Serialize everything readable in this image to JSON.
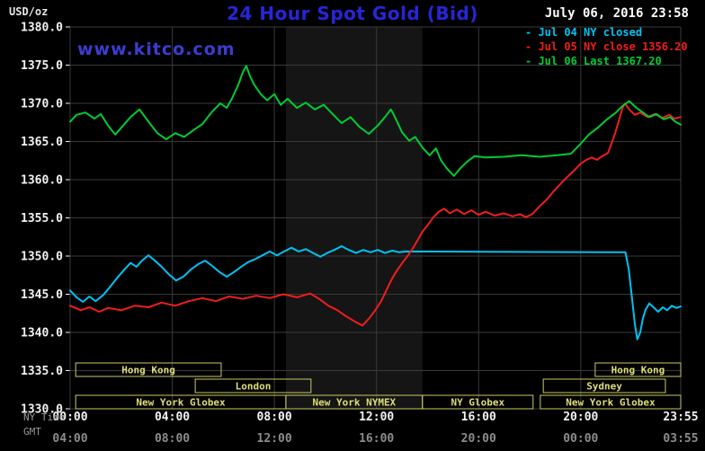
{
  "header": {
    "units_label": "USD/oz",
    "title": "24 Hour Spot Gold (Bid)",
    "datetime": "July 06, 2016 23:58"
  },
  "watermark": "www.kitco.com",
  "legend_marker": "-",
  "axis_row_labels": {
    "ny": "NY Time",
    "gmt": "GMT"
  },
  "colors": {
    "background": "#000000",
    "grid": "#3a3a3a",
    "axis_text": "#f2f2f2",
    "gmt_text": "#8c8c8c",
    "session": "#c9c966",
    "session_text": "#dede7a",
    "title": "#2626d8",
    "watermark": "#3c3cd0",
    "datetime": "#ffffff",
    "units": "#e6e6e6",
    "row_label": "#999999"
  },
  "chart_data": {
    "type": "line",
    "title": "24 Hour Spot Gold (Bid)",
    "y_axis": {
      "unit": "USD/oz",
      "min": 1330,
      "max": 1380,
      "step": 5,
      "ticks": [
        "1380.0",
        "1375.0",
        "1370.0",
        "1365.0",
        "1360.0",
        "1355.0",
        "1350.0",
        "1345.0",
        "1340.0",
        "1335.0",
        "1330.0"
      ]
    },
    "x_axis": {
      "max_minutes": 1435,
      "tick_minutes": [
        0,
        240,
        480,
        720,
        960,
        1200,
        1435
      ],
      "ny_labels": [
        "00:00",
        "04:00",
        "08:00",
        "12:00",
        "16:00",
        "20:00",
        "23:55"
      ],
      "gmt_labels": [
        "04:00",
        "08:00",
        "12:00",
        "16:00",
        "20:00",
        "00:00",
        "03:55"
      ]
    },
    "bands": [
      {
        "start": 507,
        "end": 828,
        "color": "#151515"
      }
    ],
    "sessions": [
      {
        "label": "Hong Kong",
        "row": 0,
        "start": 13,
        "end": 355
      },
      {
        "label": "Hong Kong",
        "row": 0,
        "start": 1234,
        "end": 1435
      },
      {
        "label": "London",
        "row": 1,
        "start": 294,
        "end": 566
      },
      {
        "label": "Sydney",
        "row": 1,
        "start": 1112,
        "end": 1399
      },
      {
        "label": "New York Globex",
        "row": 2,
        "start": 13,
        "end": 507
      },
      {
        "label": "New York NYMEX",
        "row": 2,
        "start": 507,
        "end": 828
      },
      {
        "label": "NY Globex",
        "row": 2,
        "start": 828,
        "end": 1088
      },
      {
        "label": "New York Globex",
        "row": 2,
        "start": 1105,
        "end": 1435
      }
    ],
    "series": [
      {
        "id": "jul04",
        "name": "Jul 04 NY closed",
        "status": "NY closed",
        "color": "#00c3f2",
        "points": [
          [
            0,
            1345.5
          ],
          [
            15,
            1344.6
          ],
          [
            30,
            1344.0
          ],
          [
            45,
            1344.7
          ],
          [
            60,
            1344.1
          ],
          [
            78,
            1344.9
          ],
          [
            93,
            1345.9
          ],
          [
            110,
            1347.1
          ],
          [
            127,
            1348.2
          ],
          [
            142,
            1349.1
          ],
          [
            156,
            1348.6
          ],
          [
            169,
            1349.4
          ],
          [
            184,
            1350.1
          ],
          [
            199,
            1349.4
          ],
          [
            215,
            1348.6
          ],
          [
            232,
            1347.6
          ],
          [
            249,
            1346.8
          ],
          [
            266,
            1347.3
          ],
          [
            283,
            1348.2
          ],
          [
            300,
            1348.9
          ],
          [
            317,
            1349.4
          ],
          [
            334,
            1348.7
          ],
          [
            351,
            1347.9
          ],
          [
            368,
            1347.3
          ],
          [
            385,
            1347.9
          ],
          [
            402,
            1348.6
          ],
          [
            418,
            1349.2
          ],
          [
            435,
            1349.6
          ],
          [
            452,
            1350.1
          ],
          [
            469,
            1350.6
          ],
          [
            486,
            1350.1
          ],
          [
            503,
            1350.6
          ],
          [
            520,
            1351.1
          ],
          [
            537,
            1350.6
          ],
          [
            554,
            1350.9
          ],
          [
            571,
            1350.4
          ],
          [
            588,
            1349.9
          ],
          [
            604,
            1350.4
          ],
          [
            621,
            1350.8
          ],
          [
            638,
            1351.3
          ],
          [
            655,
            1350.8
          ],
          [
            672,
            1350.4
          ],
          [
            689,
            1350.8
          ],
          [
            706,
            1350.5
          ],
          [
            723,
            1350.8
          ],
          [
            740,
            1350.4
          ],
          [
            757,
            1350.7
          ],
          [
            774,
            1350.5
          ],
          [
            790,
            1350.6
          ],
          [
            1305,
            1350.5
          ],
          [
            1313,
            1348.2
          ],
          [
            1320,
            1344.7
          ],
          [
            1327,
            1341.2
          ],
          [
            1333,
            1339.1
          ],
          [
            1340,
            1340.0
          ],
          [
            1346,
            1341.8
          ],
          [
            1352,
            1342.9
          ],
          [
            1361,
            1343.8
          ],
          [
            1371,
            1343.3
          ],
          [
            1382,
            1342.7
          ],
          [
            1393,
            1343.3
          ],
          [
            1403,
            1342.9
          ],
          [
            1414,
            1343.5
          ],
          [
            1425,
            1343.2
          ],
          [
            1435,
            1343.4
          ]
        ]
      },
      {
        "id": "jul05",
        "name": "Jul 05 NY close 1356.20",
        "close": 1356.2,
        "color": "#f21d1d",
        "points": [
          [
            0,
            1343.5
          ],
          [
            25,
            1342.9
          ],
          [
            46,
            1343.3
          ],
          [
            68,
            1342.7
          ],
          [
            89,
            1343.2
          ],
          [
            120,
            1342.9
          ],
          [
            152,
            1343.5
          ],
          [
            184,
            1343.3
          ],
          [
            215,
            1343.9
          ],
          [
            247,
            1343.5
          ],
          [
            279,
            1344.1
          ],
          [
            311,
            1344.5
          ],
          [
            342,
            1344.1
          ],
          [
            374,
            1344.7
          ],
          [
            406,
            1344.4
          ],
          [
            437,
            1344.8
          ],
          [
            469,
            1344.5
          ],
          [
            501,
            1345.0
          ],
          [
            533,
            1344.6
          ],
          [
            564,
            1345.1
          ],
          [
            585,
            1344.4
          ],
          [
            607,
            1343.5
          ],
          [
            628,
            1342.9
          ],
          [
            649,
            1342.1
          ],
          [
            670,
            1341.4
          ],
          [
            687,
            1340.9
          ],
          [
            702,
            1341.8
          ],
          [
            717,
            1342.9
          ],
          [
            731,
            1344.1
          ],
          [
            744,
            1345.6
          ],
          [
            757,
            1347.1
          ],
          [
            769,
            1348.2
          ],
          [
            782,
            1349.2
          ],
          [
            793,
            1350.0
          ],
          [
            803,
            1350.8
          ],
          [
            816,
            1352.0
          ],
          [
            828,
            1353.2
          ],
          [
            841,
            1354.1
          ],
          [
            854,
            1355.1
          ],
          [
            866,
            1355.8
          ],
          [
            879,
            1356.2
          ],
          [
            892,
            1355.6
          ],
          [
            909,
            1356.1
          ],
          [
            926,
            1355.5
          ],
          [
            943,
            1356.0
          ],
          [
            960,
            1355.4
          ],
          [
            976,
            1355.8
          ],
          [
            998,
            1355.3
          ],
          [
            1019,
            1355.6
          ],
          [
            1040,
            1355.2
          ],
          [
            1057,
            1355.5
          ],
          [
            1071,
            1355.1
          ],
          [
            1086,
            1355.5
          ],
          [
            1103,
            1356.5
          ],
          [
            1120,
            1357.4
          ],
          [
            1135,
            1358.4
          ],
          [
            1150,
            1359.3
          ],
          [
            1162,
            1360.0
          ],
          [
            1175,
            1360.7
          ],
          [
            1188,
            1361.4
          ],
          [
            1200,
            1362.1
          ],
          [
            1213,
            1362.6
          ],
          [
            1226,
            1362.9
          ],
          [
            1238,
            1362.6
          ],
          [
            1251,
            1363.1
          ],
          [
            1264,
            1363.5
          ],
          [
            1272,
            1364.7
          ],
          [
            1281,
            1366.1
          ],
          [
            1289,
            1367.6
          ],
          [
            1297,
            1369.2
          ],
          [
            1304,
            1370.0
          ],
          [
            1314,
            1369.2
          ],
          [
            1327,
            1368.5
          ],
          [
            1340,
            1368.8
          ],
          [
            1357,
            1368.2
          ],
          [
            1374,
            1368.6
          ],
          [
            1391,
            1368.1
          ],
          [
            1408,
            1368.5
          ],
          [
            1420,
            1368.0
          ],
          [
            1435,
            1368.2
          ]
        ]
      },
      {
        "id": "jul06",
        "name": "Jul 06 Last 1367.20",
        "last": 1367.2,
        "color": "#00cc33",
        "points": [
          [
            0,
            1367.6
          ],
          [
            15,
            1368.5
          ],
          [
            36,
            1368.8
          ],
          [
            57,
            1368.0
          ],
          [
            72,
            1368.6
          ],
          [
            89,
            1367.1
          ],
          [
            106,
            1365.9
          ],
          [
            120,
            1366.8
          ],
          [
            142,
            1368.2
          ],
          [
            163,
            1369.2
          ],
          [
            184,
            1367.6
          ],
          [
            205,
            1366.1
          ],
          [
            226,
            1365.3
          ],
          [
            247,
            1366.1
          ],
          [
            268,
            1365.6
          ],
          [
            290,
            1366.5
          ],
          [
            311,
            1367.3
          ],
          [
            332,
            1368.8
          ],
          [
            353,
            1370.0
          ],
          [
            368,
            1369.4
          ],
          [
            380,
            1370.6
          ],
          [
            395,
            1372.4
          ],
          [
            406,
            1374.1
          ],
          [
            414,
            1374.9
          ],
          [
            423,
            1373.5
          ],
          [
            433,
            1372.4
          ],
          [
            448,
            1371.2
          ],
          [
            463,
            1370.4
          ],
          [
            480,
            1371.2
          ],
          [
            495,
            1369.8
          ],
          [
            511,
            1370.6
          ],
          [
            533,
            1369.4
          ],
          [
            554,
            1370.1
          ],
          [
            575,
            1369.2
          ],
          [
            596,
            1369.8
          ],
          [
            617,
            1368.6
          ],
          [
            638,
            1367.4
          ],
          [
            659,
            1368.2
          ],
          [
            680,
            1366.9
          ],
          [
            702,
            1366.0
          ],
          [
            723,
            1367.1
          ],
          [
            740,
            1368.2
          ],
          [
            754,
            1369.2
          ],
          [
            765,
            1368.0
          ],
          [
            780,
            1366.2
          ],
          [
            797,
            1365.1
          ],
          [
            811,
            1365.6
          ],
          [
            828,
            1364.2
          ],
          [
            845,
            1363.2
          ],
          [
            860,
            1364.1
          ],
          [
            871,
            1362.6
          ],
          [
            885,
            1361.5
          ],
          [
            902,
            1360.5
          ],
          [
            917,
            1361.5
          ],
          [
            934,
            1362.4
          ],
          [
            951,
            1363.1
          ],
          [
            976,
            1362.9
          ],
          [
            1019,
            1363.0
          ],
          [
            1061,
            1363.2
          ],
          [
            1103,
            1363.0
          ],
          [
            1145,
            1363.2
          ],
          [
            1177,
            1363.4
          ],
          [
            1198,
            1364.6
          ],
          [
            1219,
            1365.9
          ],
          [
            1240,
            1366.8
          ],
          [
            1262,
            1367.9
          ],
          [
            1283,
            1368.8
          ],
          [
            1297,
            1369.6
          ],
          [
            1314,
            1370.3
          ],
          [
            1331,
            1369.4
          ],
          [
            1346,
            1368.8
          ],
          [
            1361,
            1368.2
          ],
          [
            1378,
            1368.6
          ],
          [
            1395,
            1367.9
          ],
          [
            1410,
            1368.2
          ],
          [
            1422,
            1367.6
          ],
          [
            1435,
            1367.2
          ]
        ]
      }
    ]
  }
}
